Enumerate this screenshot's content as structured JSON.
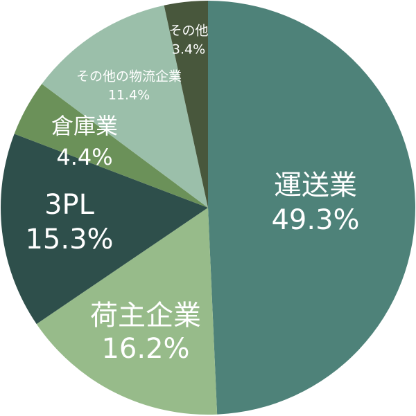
{
  "chart_data": {
    "type": "pie",
    "categories": [
      "運送業",
      "荷主企業",
      "3PL",
      "倉庫業",
      "その他の物流企業",
      "その他"
    ],
    "values": [
      49.3,
      16.2,
      15.3,
      4.4,
      11.4,
      3.4
    ],
    "value_labels": [
      "49.3%",
      "16.2%",
      "15.3%",
      "4.4%",
      "11.4%",
      "3.4%"
    ],
    "colors": [
      "#4e8279",
      "#97bb8a",
      "#2e4f4b",
      "#6b9159",
      "#9bbfaa",
      "#48573c"
    ]
  }
}
